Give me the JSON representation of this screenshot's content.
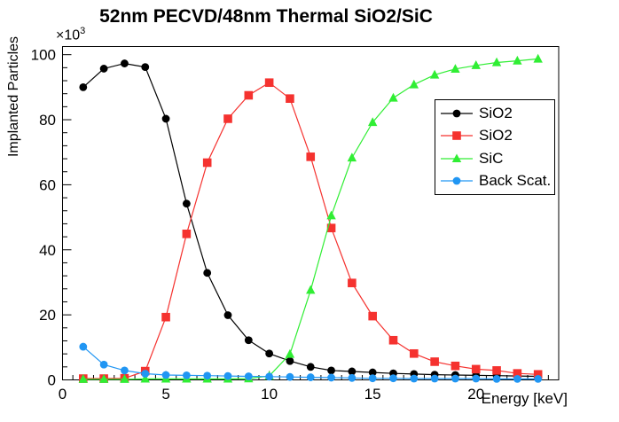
{
  "figure": {
    "window_bg": "#ffffff",
    "frame_color": "#000000"
  },
  "chart_data": {
    "type": "line",
    "title": "52nm PECVD/48nm Thermal SiO2/SiC",
    "xlabel": "Energy [keV]",
    "ylabel": "Implanted Particles",
    "y_exponent": {
      "base": "×10",
      "power": "3"
    },
    "y_unit": "×10³ particles",
    "xlim": [
      0,
      24
    ],
    "ylim_k": [
      0,
      102.5
    ],
    "x_major_ticks": [
      0,
      5,
      10,
      15,
      20
    ],
    "x_minor_step": 0.5,
    "y_major_ticks_k": [
      0,
      20,
      40,
      60,
      80,
      100
    ],
    "y_minor_step_k": 4,
    "grid": false,
    "legend_position": "right-inside",
    "x": [
      1,
      2,
      3,
      4,
      5,
      6,
      7,
      8,
      9,
      10,
      11,
      12,
      13,
      14,
      15,
      16,
      17,
      18,
      19,
      20,
      21,
      22,
      23
    ],
    "series": [
      {
        "name": "SiO2",
        "id": "sio2-pecvd",
        "color": "#000000",
        "marker": "circle",
        "values_k": [
          90.0,
          95.7,
          97.3,
          96.2,
          80.3,
          54.2,
          32.9,
          19.9,
          12.2,
          8.1,
          5.8,
          4.0,
          2.9,
          2.6,
          2.3,
          2.0,
          1.8,
          1.6,
          1.5,
          1.4,
          1.3,
          1.2,
          1.1
        ]
      },
      {
        "name": "SiO2",
        "id": "sio2-thermal",
        "color": "#f5322f",
        "marker": "square",
        "values_k": [
          0.4,
          0.4,
          0.5,
          2.7,
          19.3,
          44.9,
          66.8,
          80.3,
          87.5,
          91.4,
          86.5,
          68.6,
          46.7,
          29.8,
          19.6,
          12.2,
          8.1,
          5.6,
          4.3,
          3.3,
          2.9,
          2.0,
          1.7
        ]
      },
      {
        "name": "SiC",
        "id": "sic",
        "color": "#30ee34",
        "marker": "triangle",
        "values_k": [
          0.2,
          0.2,
          0.2,
          0.3,
          0.3,
          0.3,
          0.3,
          0.3,
          0.4,
          1.2,
          7.9,
          27.6,
          50.5,
          68.3,
          79.2,
          86.7,
          90.8,
          93.8,
          95.6,
          96.7,
          97.6,
          98.1,
          98.7
        ]
      },
      {
        "name": "Back Scat.",
        "id": "back-scat",
        "color": "#2196f3",
        "marker": "circle",
        "values_k": [
          10.2,
          4.7,
          2.9,
          1.9,
          1.5,
          1.4,
          1.3,
          1.2,
          1.1,
          1.0,
          0.9,
          0.8,
          0.7,
          0.6,
          0.5,
          0.5,
          0.4,
          0.4,
          0.4,
          0.4,
          0.3,
          0.3,
          0.3
        ]
      }
    ],
    "legend_entries": [
      "SiO2",
      "SiO2",
      "SiC",
      "Back Scat."
    ]
  }
}
